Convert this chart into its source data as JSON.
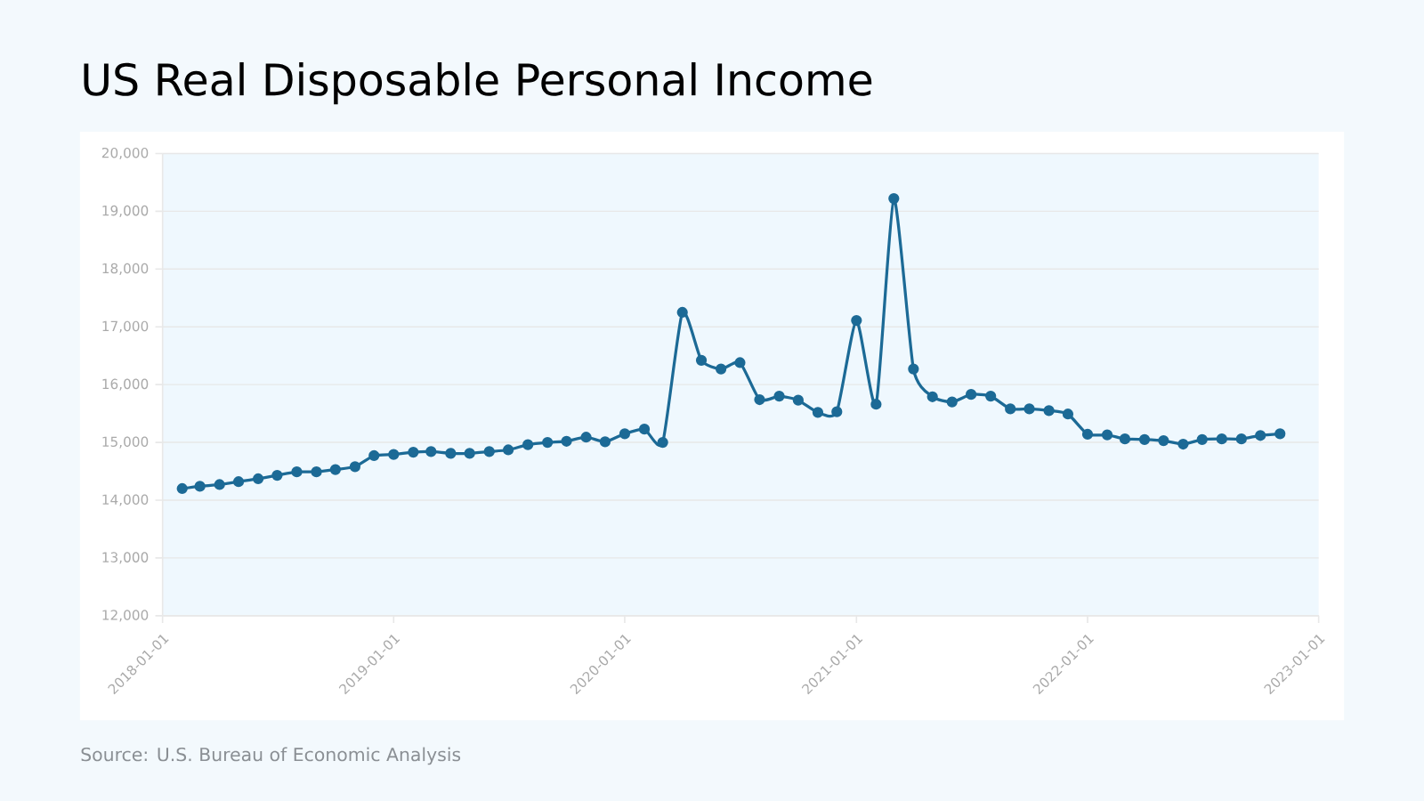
{
  "chart_data": {
    "type": "line",
    "title": "US Real Disposable Personal Income",
    "annotations": [
      "Source: U.S. Bureau of Economic Analysis"
    ],
    "x": [
      "2018-02",
      "2018-03",
      "2018-04",
      "2018-05",
      "2018-06",
      "2018-07",
      "2018-08",
      "2018-09",
      "2018-10",
      "2018-11",
      "2018-12",
      "2019-01",
      "2019-02",
      "2019-03",
      "2019-04",
      "2019-05",
      "2019-06",
      "2019-07",
      "2019-08",
      "2019-09",
      "2019-10",
      "2019-11",
      "2019-12",
      "2020-01",
      "2020-02",
      "2020-03",
      "2020-04",
      "2020-05",
      "2020-06",
      "2020-07",
      "2020-08",
      "2020-09",
      "2020-10",
      "2020-11",
      "2020-12",
      "2021-01",
      "2021-02",
      "2021-03",
      "2021-04",
      "2021-05",
      "2021-06",
      "2021-07",
      "2021-08",
      "2021-09",
      "2021-10",
      "2021-11",
      "2021-12",
      "2022-01",
      "2022-02",
      "2022-03",
      "2022-04",
      "2022-05",
      "2022-06",
      "2022-07",
      "2022-08",
      "2022-09",
      "2022-10",
      "2022-11"
    ],
    "series": [
      {
        "color": "#1c6a96",
        "values": [
          14200,
          14240,
          14270,
          14320,
          14370,
          14430,
          14490,
          14490,
          14530,
          14580,
          14770,
          14790,
          14830,
          14840,
          14810,
          14810,
          14840,
          14870,
          14960,
          15000,
          15020,
          15090,
          15010,
          15150,
          15230,
          15000,
          17250,
          16420,
          16270,
          16380,
          15740,
          15800,
          15730,
          15520,
          15530,
          17110,
          15660,
          19220,
          16270,
          15790,
          15700,
          15830,
          15800,
          15580,
          15580,
          15550,
          15490,
          15140,
          15130,
          15060,
          15050,
          15030,
          14970,
          15050,
          15060,
          15060,
          15120,
          15150
        ]
      }
    ],
    "xlim": [
      "2018-01-01",
      "2023-01-01"
    ],
    "xticks": [
      "2018-01-01",
      "2019-01-01",
      "2020-01-01",
      "2021-01-01",
      "2022-01-01",
      "2023-01-01"
    ],
    "ylim": [
      12000,
      20000
    ],
    "yticks": [
      {
        "value": 12000,
        "label": "12,000"
      },
      {
        "value": 13000,
        "label": "13,000"
      },
      {
        "value": 14000,
        "label": "14,000"
      },
      {
        "value": 15000,
        "label": "15,000"
      },
      {
        "value": 16000,
        "label": "16,000"
      },
      {
        "value": 17000,
        "label": "17,000"
      },
      {
        "value": 18000,
        "label": "18,000"
      },
      {
        "value": 19000,
        "label": "19,000"
      },
      {
        "value": 20000,
        "label": "20,000"
      }
    ],
    "grid": "y",
    "marker": "circle"
  }
}
